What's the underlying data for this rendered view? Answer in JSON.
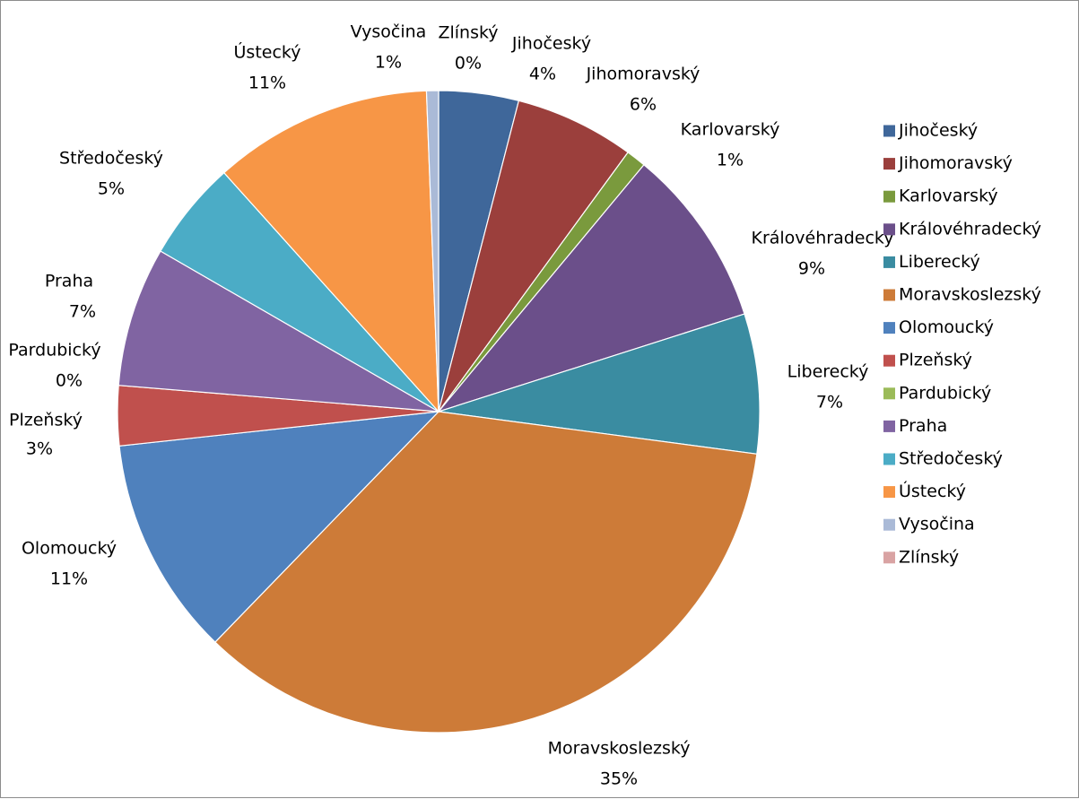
{
  "chart_data": {
    "type": "pie",
    "title": "",
    "legend_position": "right",
    "slices": [
      {
        "name": "Jihočeský",
        "value": 4,
        "label": "4%",
        "color": "#3f679a"
      },
      {
        "name": "Jihomoravský",
        "value": 6,
        "label": "6%",
        "color": "#9b3f3c"
      },
      {
        "name": "Karlovarský",
        "value": 1,
        "label": "1%",
        "color": "#7a9a3d"
      },
      {
        "name": "Královéhradecký",
        "value": 9,
        "label": "9%",
        "color": "#6b4f8a"
      },
      {
        "name": "Liberecký",
        "value": 7,
        "label": "7%",
        "color": "#3a8ca1"
      },
      {
        "name": "Moravskoslezský",
        "value": 35,
        "label": "35%",
        "color": "#cd7b38"
      },
      {
        "name": "Olomoucký",
        "value": 11,
        "label": "11%",
        "color": "#4f81bd"
      },
      {
        "name": "Plzeňský",
        "value": 3,
        "label": "3%",
        "color": "#c0504d"
      },
      {
        "name": "Pardubický",
        "value": 0,
        "label": "0%",
        "color": "#9bbb59"
      },
      {
        "name": "Praha",
        "value": 7,
        "label": "7%",
        "color": "#8064a2"
      },
      {
        "name": "Středočeský",
        "value": 5,
        "label": "5%",
        "color": "#4bacc6"
      },
      {
        "name": "Ústecký",
        "value": 11,
        "label": "11%",
        "color": "#f79646"
      },
      {
        "name": "Vysočina",
        "value": 0.6,
        "label": "1%",
        "color": "#aabad7"
      },
      {
        "name": "Zlínský",
        "value": 0,
        "label": "0%",
        "color": "#d9a3a3"
      }
    ]
  }
}
